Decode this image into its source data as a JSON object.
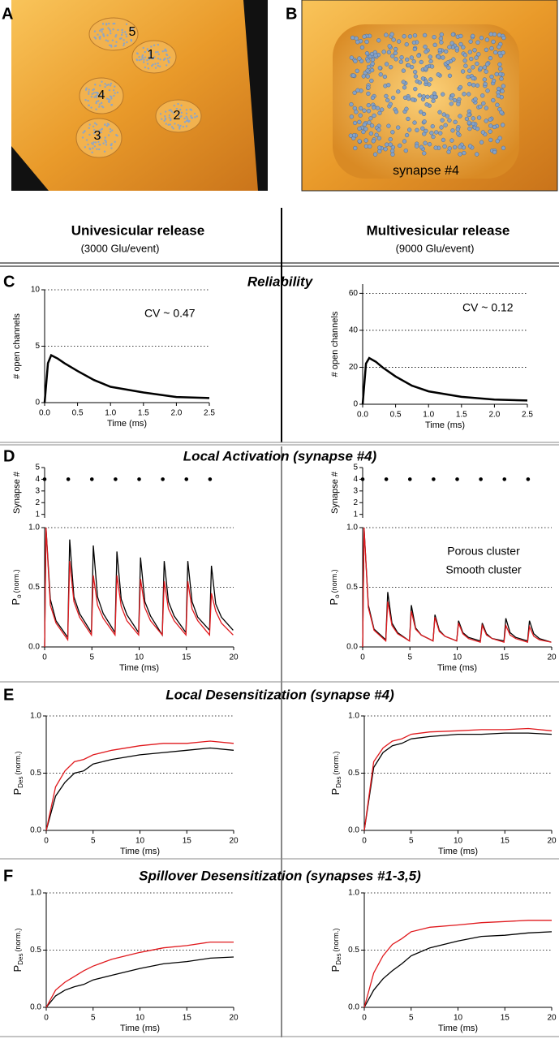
{
  "panel_labels": [
    "A",
    "B",
    "C",
    "D",
    "E",
    "F"
  ],
  "image_a": {
    "synapse_labels": [
      "1",
      "2",
      "3",
      "4",
      "5"
    ]
  },
  "image_b": {
    "caption": "synapse #4"
  },
  "columns": [
    {
      "title": "Univesicular release",
      "subtitle": "(3000 Glu/event)"
    },
    {
      "title": "Multivesicular release",
      "subtitle": "(9000 Glu/event)"
    }
  ],
  "section_titles": [
    "Reliability",
    "Local Activation (synapse #4)",
    "Local Desensitization (synapse #4)",
    "Spillover Desensitization (synapses #1-3,5)"
  ],
  "chart_data": [
    {
      "type": "line",
      "x": [
        0,
        0.05,
        0.1,
        0.2,
        0.3,
        0.5,
        0.75,
        1,
        1.5,
        2,
        2.5
      ],
      "series": [
        {
          "color": "#000000",
          "values": [
            0,
            3.5,
            4.2,
            3.9,
            3.5,
            2.8,
            2.0,
            1.4,
            0.9,
            0.5,
            0.4
          ]
        }
      ],
      "xlim": [
        0,
        2.5
      ],
      "ylim": [
        0,
        10
      ],
      "xticks": [
        {
          "value": 0,
          "label": "0.0"
        },
        0.5,
        {
          "value": 1,
          "label": "1.0"
        },
        1.5,
        {
          "value": 2,
          "label": "2.0"
        },
        2.5
      ],
      "yticks": [
        0,
        5,
        10
      ],
      "xlabel": "Time (ms)",
      "ylabel": "# open channels",
      "annotation": "CV ~ 0.47",
      "grid": true
    },
    {
      "type": "line",
      "x": [
        0,
        0.05,
        0.1,
        0.2,
        0.3,
        0.5,
        0.75,
        1,
        1.5,
        2,
        2.5
      ],
      "series": [
        {
          "color": "#000000",
          "values": [
            0,
            22,
            25,
            23,
            20,
            15,
            10,
            7,
            4,
            2.5,
            2
          ]
        }
      ],
      "xlim": [
        0,
        2.5
      ],
      "ylim": [
        0,
        65
      ],
      "xticks": [
        {
          "value": 0,
          "label": "0.0"
        },
        0.5,
        {
          "value": 1,
          "label": "1.0"
        },
        1.5,
        {
          "value": 2,
          "label": "2.0"
        },
        2.5
      ],
      "yticks": [
        0,
        20,
        40,
        60
      ],
      "xlabel": "Time (ms)",
      "ylabel": "# open channels",
      "annotation": "CV ~ 0.12",
      "grid": true
    },
    {
      "type": "scatter",
      "x": [
        0,
        2.5,
        5,
        7.5,
        10,
        12.5,
        15,
        17.5
      ],
      "series": [
        {
          "color": "#000000",
          "values": [
            4,
            4,
            4,
            4,
            4,
            4,
            4,
            4
          ]
        }
      ],
      "xlim": [
        0,
        20
      ],
      "ylim": [
        0.7,
        5
      ],
      "yticks": [
        1,
        2,
        3,
        4,
        5
      ],
      "ylabel": "Synapse #"
    },
    {
      "type": "scatter",
      "x": [
        0,
        2.5,
        5,
        7.5,
        10,
        12.5,
        15,
        17.5
      ],
      "series": [
        {
          "color": "#000000",
          "values": [
            4,
            4,
            4,
            4,
            4,
            4,
            4,
            4
          ]
        }
      ],
      "xlim": [
        0,
        20
      ],
      "ylim": [
        0.7,
        5
      ],
      "yticks": [
        1,
        2,
        3,
        4,
        5
      ],
      "ylabel": "Synapse #"
    },
    {
      "type": "line",
      "x": [
        0,
        0.15,
        0.6,
        1.2,
        2.45,
        2.65,
        3.1,
        3.7,
        4.95,
        5.15,
        5.6,
        6.2,
        7.45,
        7.65,
        8.1,
        8.7,
        9.95,
        10.15,
        10.6,
        11.2,
        12.45,
        12.65,
        13.1,
        13.7,
        14.95,
        15.15,
        15.6,
        16.2,
        17.45,
        17.65,
        18.1,
        18.7,
        19.95
      ],
      "series": [
        {
          "color": "#000000",
          "values": [
            0,
            1.0,
            0.4,
            0.22,
            0.08,
            0.9,
            0.42,
            0.28,
            0.12,
            0.85,
            0.42,
            0.28,
            0.12,
            0.8,
            0.4,
            0.27,
            0.12,
            0.75,
            0.38,
            0.26,
            0.1,
            0.72,
            0.38,
            0.26,
            0.12,
            0.72,
            0.38,
            0.25,
            0.14,
            0.68,
            0.36,
            0.25,
            0.14
          ]
        },
        {
          "color": "#e0191d",
          "values": [
            0,
            1.0,
            0.35,
            0.2,
            0.06,
            0.72,
            0.38,
            0.25,
            0.1,
            0.6,
            0.35,
            0.24,
            0.1,
            0.6,
            0.34,
            0.22,
            0.1,
            0.57,
            0.33,
            0.22,
            0.1,
            0.55,
            0.32,
            0.22,
            0.1,
            0.55,
            0.32,
            0.22,
            0.1,
            0.45,
            0.3,
            0.2,
            0.1
          ]
        }
      ],
      "xlim": [
        0,
        20
      ],
      "ylim": [
        0,
        1
      ],
      "xticks": [
        0,
        5,
        10,
        15,
        20
      ],
      "yticks": [
        {
          "value": 0,
          "label": "0.0"
        },
        0.5,
        {
          "value": 1,
          "label": "1.0"
        }
      ],
      "xlabel": "Time (ms)",
      "ylabel": "P",
      "ylabel_sub": "o",
      "ylabel_unit": "(norm.)",
      "grid": true
    },
    {
      "type": "line",
      "x": [
        0,
        0.15,
        0.6,
        1.2,
        2.45,
        2.65,
        3.1,
        3.7,
        4.95,
        5.15,
        5.6,
        6.2,
        7.45,
        7.65,
        8.1,
        8.7,
        9.95,
        10.15,
        10.6,
        11.2,
        12.45,
        12.65,
        13.1,
        13.7,
        14.95,
        15.15,
        15.6,
        16.2,
        17.45,
        17.65,
        18.1,
        18.7,
        19.95
      ],
      "series": [
        {
          "name": "Porous cluster",
          "color": "#000000",
          "values": [
            0,
            1.0,
            0.35,
            0.15,
            0.06,
            0.46,
            0.2,
            0.12,
            0.05,
            0.35,
            0.16,
            0.1,
            0.05,
            0.27,
            0.14,
            0.09,
            0.05,
            0.22,
            0.12,
            0.08,
            0.05,
            0.2,
            0.11,
            0.07,
            0.05,
            0.24,
            0.12,
            0.08,
            0.05,
            0.22,
            0.11,
            0.07,
            0.04
          ]
        },
        {
          "name": "Smooth cluster",
          "color": "#e0191d",
          "values": [
            0,
            1.0,
            0.33,
            0.14,
            0.05,
            0.38,
            0.18,
            0.11,
            0.05,
            0.3,
            0.15,
            0.1,
            0.05,
            0.25,
            0.13,
            0.09,
            0.05,
            0.2,
            0.11,
            0.07,
            0.04,
            0.18,
            0.1,
            0.07,
            0.04,
            0.18,
            0.1,
            0.07,
            0.04,
            0.17,
            0.09,
            0.06,
            0.04
          ]
        }
      ],
      "xlim": [
        0,
        20
      ],
      "ylim": [
        0,
        1
      ],
      "xticks": [
        0,
        5,
        10,
        15,
        20
      ],
      "yticks": [
        {
          "value": 0,
          "label": "0.0"
        },
        0.5,
        {
          "value": 1,
          "label": "1.0"
        }
      ],
      "xlabel": "Time (ms)",
      "ylabel": "P",
      "ylabel_sub": "o",
      "ylabel_unit": "(norm.)",
      "grid": true,
      "legend": "upper right"
    },
    {
      "type": "line",
      "x": [
        0,
        1,
        2,
        3,
        4,
        5,
        7,
        10,
        12.5,
        15,
        17.5,
        20
      ],
      "series": [
        {
          "color": "#000000",
          "values": [
            0,
            0.3,
            0.42,
            0.5,
            0.52,
            0.58,
            0.62,
            0.66,
            0.68,
            0.7,
            0.72,
            0.7
          ]
        },
        {
          "color": "#e0191d",
          "values": [
            0,
            0.38,
            0.52,
            0.6,
            0.62,
            0.66,
            0.7,
            0.74,
            0.76,
            0.76,
            0.78,
            0.76
          ]
        }
      ],
      "xlim": [
        0,
        20
      ],
      "ylim": [
        0,
        1
      ],
      "xticks": [
        0,
        5,
        10,
        15,
        20
      ],
      "yticks": [
        {
          "value": 0,
          "label": "0.0"
        },
        0.5,
        {
          "value": 1,
          "label": "1.0"
        }
      ],
      "xlabel": "Time (ms)",
      "ylabel": "P",
      "ylabel_sub": "Des",
      "ylabel_unit": "(norm.)",
      "grid": true
    },
    {
      "type": "line",
      "x": [
        0,
        1,
        2,
        3,
        4,
        5,
        7,
        10,
        12.5,
        15,
        17.5,
        20
      ],
      "series": [
        {
          "color": "#000000",
          "values": [
            0,
            0.55,
            0.68,
            0.74,
            0.76,
            0.8,
            0.82,
            0.84,
            0.84,
            0.85,
            0.85,
            0.84
          ]
        },
        {
          "color": "#e0191d",
          "values": [
            0,
            0.6,
            0.72,
            0.78,
            0.8,
            0.84,
            0.86,
            0.87,
            0.88,
            0.88,
            0.89,
            0.87
          ]
        }
      ],
      "xlim": [
        0,
        20
      ],
      "ylim": [
        0,
        1
      ],
      "xticks": [
        0,
        5,
        10,
        15,
        20
      ],
      "yticks": [
        {
          "value": 0,
          "label": "0.0"
        },
        0.5,
        {
          "value": 1,
          "label": "1.0"
        }
      ],
      "xlabel": "Time (ms)",
      "ylabel": "P",
      "ylabel_sub": "Des",
      "ylabel_unit": "(norm.)",
      "grid": true
    },
    {
      "type": "line",
      "x": [
        0,
        1,
        2,
        3,
        4,
        5,
        7,
        10,
        12.5,
        15,
        17.5,
        20
      ],
      "series": [
        {
          "color": "#000000",
          "values": [
            0,
            0.1,
            0.15,
            0.18,
            0.2,
            0.24,
            0.28,
            0.34,
            0.38,
            0.4,
            0.43,
            0.44
          ]
        },
        {
          "color": "#e0191d",
          "values": [
            0,
            0.15,
            0.22,
            0.27,
            0.32,
            0.36,
            0.42,
            0.48,
            0.52,
            0.54,
            0.57,
            0.57
          ]
        }
      ],
      "xlim": [
        0,
        20
      ],
      "ylim": [
        0,
        1
      ],
      "xticks": [
        0,
        5,
        10,
        15,
        20
      ],
      "yticks": [
        {
          "value": 0,
          "label": "0.0"
        },
        0.5,
        {
          "value": 1,
          "label": "1.0"
        }
      ],
      "xlabel": "Time (ms)",
      "ylabel": "P",
      "ylabel_sub": "Des",
      "ylabel_unit": "(norm.)",
      "grid": true
    },
    {
      "type": "line",
      "x": [
        0,
        1,
        2,
        3,
        4,
        5,
        7,
        10,
        12.5,
        15,
        17.5,
        20
      ],
      "series": [
        {
          "color": "#000000",
          "values": [
            0,
            0.15,
            0.25,
            0.32,
            0.38,
            0.45,
            0.52,
            0.58,
            0.62,
            0.63,
            0.65,
            0.66
          ]
        },
        {
          "color": "#e0191d",
          "values": [
            0,
            0.3,
            0.45,
            0.55,
            0.6,
            0.66,
            0.7,
            0.72,
            0.74,
            0.75,
            0.76,
            0.76
          ]
        }
      ],
      "xlim": [
        0,
        20
      ],
      "ylim": [
        0,
        1
      ],
      "xticks": [
        0,
        5,
        10,
        15,
        20
      ],
      "yticks": [
        {
          "value": 0,
          "label": "0.0"
        },
        0.5,
        {
          "value": 1,
          "label": "1.0"
        }
      ],
      "xlabel": "Time (ms)",
      "ylabel": "P",
      "ylabel_sub": "Des",
      "ylabel_unit": "(norm.)",
      "grid": true
    }
  ]
}
